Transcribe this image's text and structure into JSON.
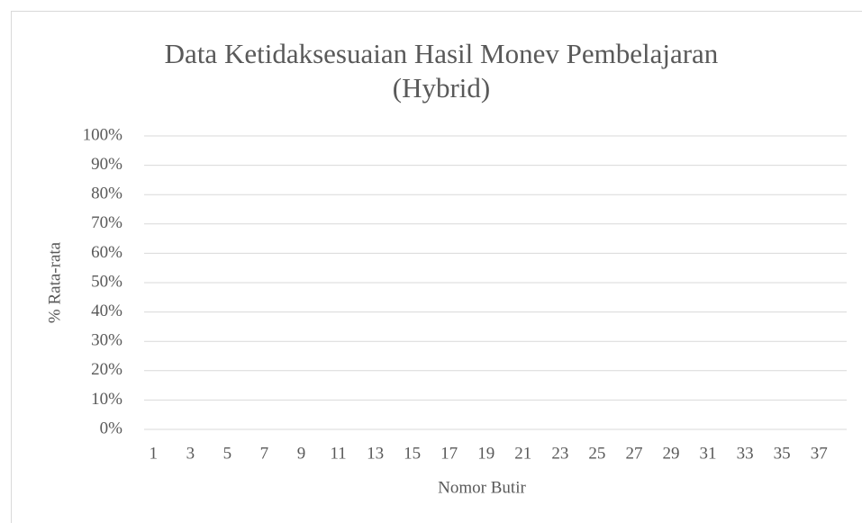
{
  "chart_data": {
    "type": "bar",
    "title": "Data Ketidaksesuaian Hasil Monev Pembelajaran",
    "subtitle": "(Hybrid)",
    "x_label": "Nomor Butir",
    "y_label": "% Rata-rata",
    "categories": [
      1,
      null,
      3,
      null,
      5,
      null,
      7,
      null,
      9,
      null,
      11,
      null,
      13,
      null,
      15,
      null,
      17,
      null,
      19,
      null,
      21,
      null,
      23,
      null,
      25,
      null,
      27,
      null,
      29,
      null,
      31,
      null,
      33,
      null,
      35,
      null,
      37,
      null
    ],
    "values": [
      0,
      0,
      0,
      0,
      0,
      0,
      0,
      0,
      0,
      0,
      0,
      0,
      0,
      0,
      0,
      0,
      0,
      0,
      0,
      0,
      0,
      0,
      0,
      0,
      0,
      0,
      0,
      0,
      0,
      0,
      0,
      0,
      0,
      0,
      0,
      0,
      0,
      0
    ],
    "color": "#4472c4",
    "ylim": [
      0,
      100
    ],
    "yticks": [
      {
        "value": 0,
        "label": "0%"
      },
      {
        "value": 10,
        "label": "10%"
      },
      {
        "value": 20,
        "label": "20%"
      },
      {
        "value": 30,
        "label": "30%"
      },
      {
        "value": 40,
        "label": "40%"
      },
      {
        "value": 50,
        "label": "50%"
      },
      {
        "value": 60,
        "label": "60%"
      },
      {
        "value": 70,
        "label": "70%"
      },
      {
        "value": 80,
        "label": "80%"
      },
      {
        "value": 90,
        "label": "90%"
      },
      {
        "value": 100,
        "label": "100%"
      }
    ],
    "grid": true
  }
}
